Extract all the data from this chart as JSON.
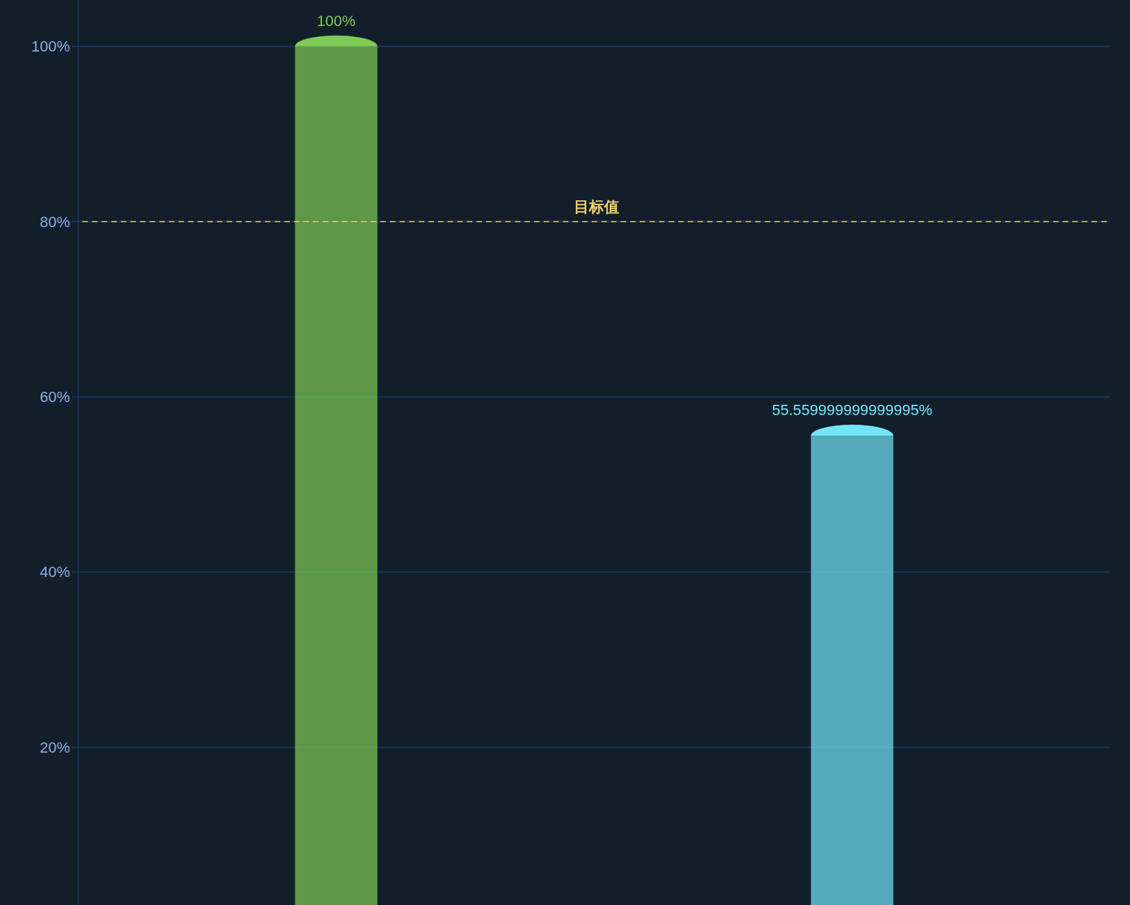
{
  "chart_data": {
    "type": "bar",
    "categories": [
      null,
      null
    ],
    "values": [
      100,
      55.559999999999995
    ],
    "colors": [
      "#7ecb55",
      "#72e6f8"
    ],
    "value_labels": [
      "100%",
      "55.559999999999995%"
    ],
    "ylim": [
      2,
      105.3
    ],
    "yticks": [
      {
        "value": 20,
        "label": "20%"
      },
      {
        "value": 40,
        "label": "40%"
      },
      {
        "value": 60,
        "label": "60%"
      },
      {
        "value": 80,
        "label": "80%"
      },
      {
        "value": 100,
        "label": "100%"
      }
    ],
    "grid": "y",
    "ref_lines": [
      {
        "axis": "y",
        "value": 80,
        "label": "目标值",
        "color": "#f2d06b",
        "line_style": "dashed"
      }
    ]
  }
}
